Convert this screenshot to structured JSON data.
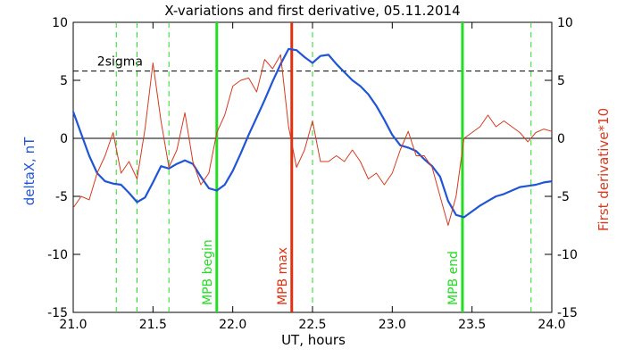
{
  "chart_data": {
    "type": "line",
    "title": "X-variations and first derivative, 05.11.2014",
    "xlabel": "UT, hours",
    "ylabel_left": "deltaX, nT",
    "ylabel_right": "First derivative*10",
    "xlim": [
      21.0,
      24.0
    ],
    "ylim_left": [
      -15,
      10
    ],
    "ylim_right": [
      -15,
      10
    ],
    "x_ticks": [
      "21.0",
      "21.5",
      "22.0",
      "22.5",
      "23.0",
      "23.5",
      "24.0"
    ],
    "y_ticks_left": [
      "-15",
      "-10",
      "-5",
      "0",
      "5",
      "10"
    ],
    "y_ticks_right": [
      "-15",
      "-10",
      "-5",
      "0",
      "5",
      "10"
    ],
    "colors": {
      "deltaX": "#1f55d6",
      "derivative": "#d63a1f",
      "mpb": "#22dd22",
      "mpb_max": "#e03010",
      "reference": "#000000"
    },
    "threshold": {
      "label": "2sigma",
      "value": 5.8
    },
    "zero_line": 0,
    "vertical_markers": [
      {
        "x": 21.9,
        "label": "MPB begin",
        "type": "mpb"
      },
      {
        "x": 22.37,
        "label": "MPB max",
        "type": "mpb_max"
      },
      {
        "x": 23.44,
        "label": "MPB end",
        "type": "mpb"
      }
    ],
    "dashed_markers_x": [
      21.27,
      21.4,
      21.6,
      22.5,
      23.87
    ],
    "series": [
      {
        "name": "deltaX",
        "axis": "left",
        "x": [
          21.0,
          21.05,
          21.1,
          21.15,
          21.2,
          21.25,
          21.3,
          21.35,
          21.4,
          21.45,
          21.5,
          21.55,
          21.6,
          21.65,
          21.7,
          21.75,
          21.8,
          21.85,
          21.9,
          21.95,
          22.0,
          22.05,
          22.1,
          22.15,
          22.2,
          22.25,
          22.3,
          22.35,
          22.4,
          22.45,
          22.5,
          22.55,
          22.6,
          22.65,
          22.7,
          22.75,
          22.8,
          22.85,
          22.9,
          22.95,
          23.0,
          23.05,
          23.1,
          23.15,
          23.2,
          23.25,
          23.3,
          23.35,
          23.4,
          23.45,
          23.5,
          23.55,
          23.6,
          23.65,
          23.7,
          23.75,
          23.8,
          23.85,
          23.9,
          23.95,
          24.0
        ],
        "values": [
          2.3,
          0.4,
          -1.5,
          -3.0,
          -3.7,
          -3.9,
          -4.0,
          -4.7,
          -5.5,
          -5.1,
          -3.8,
          -2.4,
          -2.6,
          -2.2,
          -1.9,
          -2.2,
          -3.3,
          -4.3,
          -4.5,
          -4.0,
          -2.8,
          -1.3,
          0.3,
          1.8,
          3.3,
          4.9,
          6.4,
          7.7,
          7.6,
          7.0,
          6.5,
          7.1,
          7.2,
          6.4,
          5.7,
          5.0,
          4.5,
          3.8,
          2.8,
          1.6,
          0.3,
          -0.6,
          -0.8,
          -1.1,
          -1.8,
          -2.4,
          -3.3,
          -5.4,
          -6.6,
          -6.8,
          -6.3,
          -5.8,
          -5.4,
          -5.0,
          -4.8,
          -4.5,
          -4.2,
          -4.1,
          -4.0,
          -3.8,
          -3.7
        ]
      },
      {
        "name": "First derivative*10",
        "axis": "right",
        "x": [
          21.0,
          21.05,
          21.1,
          21.15,
          21.2,
          21.25,
          21.3,
          21.35,
          21.4,
          21.45,
          21.5,
          21.55,
          21.6,
          21.65,
          21.7,
          21.75,
          21.8,
          21.85,
          21.9,
          21.95,
          22.0,
          22.05,
          22.1,
          22.15,
          22.2,
          22.25,
          22.3,
          22.35,
          22.4,
          22.45,
          22.5,
          22.55,
          22.6,
          22.65,
          22.7,
          22.75,
          22.8,
          22.85,
          22.9,
          22.95,
          23.0,
          23.05,
          23.1,
          23.15,
          23.2,
          23.25,
          23.3,
          23.35,
          23.4,
          23.45,
          23.5,
          23.55,
          23.6,
          23.65,
          23.7,
          23.75,
          23.8,
          23.85,
          23.9,
          23.95,
          24.0
        ],
        "values": [
          -6.0,
          -5.0,
          -5.3,
          -3.0,
          -1.5,
          0.5,
          -3.0,
          -2.0,
          -3.5,
          0.8,
          6.5,
          1.5,
          -2.5,
          -1.0,
          2.2,
          -2.0,
          -4.0,
          -3.0,
          0.5,
          2.0,
          4.5,
          5.0,
          5.2,
          4.0,
          6.8,
          6.0,
          7.2,
          1.0,
          -2.5,
          -1.0,
          1.5,
          -2.0,
          -2.0,
          -1.5,
          -2.0,
          -1.0,
          -2.0,
          -3.5,
          -3.0,
          -4.0,
          -3.0,
          -1.0,
          0.6,
          -1.5,
          -1.5,
          -2.5,
          -5.0,
          -7.5,
          -5.0,
          0.0,
          0.5,
          1.0,
          2.0,
          1.0,
          1.5,
          1.0,
          0.5,
          -0.3,
          0.5,
          0.8,
          0.6
        ]
      }
    ]
  }
}
